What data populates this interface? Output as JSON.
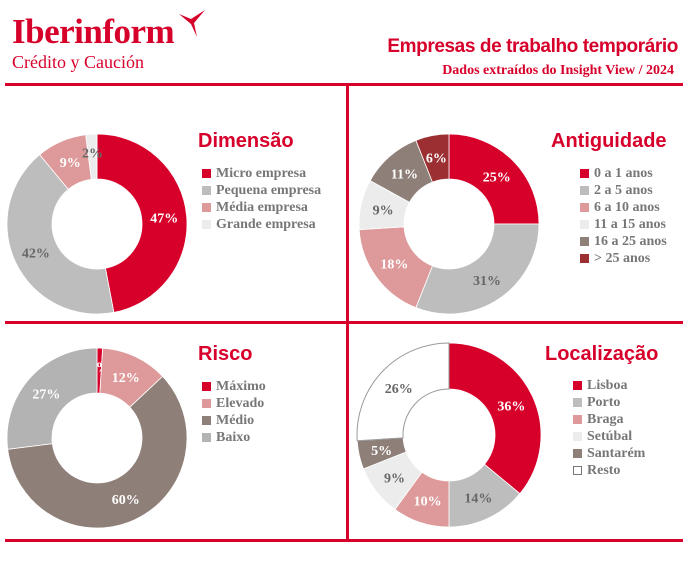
{
  "header": {
    "brand": "Iberinform",
    "brand_sub": "Crédito y Caución",
    "title": "Empresas de trabalho temporário",
    "subtitle": "Dados extraídos do Insight View / 2024"
  },
  "chart_data": [
    {
      "type": "pie",
      "title": "Dimensão",
      "categories": [
        "Micro empresa",
        "Pequena empresa",
        "Média empresa",
        "Grande empresa"
      ],
      "values": [
        47,
        42,
        9,
        2
      ],
      "colors": [
        "#d7002b",
        "#bdbdbd",
        "#de9a9a",
        "#ececec"
      ],
      "label_colors": [
        "#ffffff",
        "#666666",
        "#ffffff",
        "#666666"
      ]
    },
    {
      "type": "pie",
      "title": "Antiguidade",
      "categories": [
        "0 a 1 anos",
        "2 a 5 anos",
        "6 a 10 anos",
        "11 a 15 anos",
        "16 a 25 anos",
        "> 25 anos"
      ],
      "values": [
        25,
        31,
        18,
        9,
        11,
        6
      ],
      "colors": [
        "#d7002b",
        "#bdbdbd",
        "#de9a9a",
        "#ececec",
        "#8e7f78",
        "#9b2f31"
      ],
      "label_colors": [
        "#ffffff",
        "#666666",
        "#ffffff",
        "#666666",
        "#ffffff",
        "#ffffff"
      ]
    },
    {
      "type": "pie",
      "title": "Risco",
      "categories": [
        "Máximo",
        "Elevado",
        "Médio",
        "Baixo"
      ],
      "values": [
        1,
        12,
        60,
        27
      ],
      "colors": [
        "#d7002b",
        "#de9a9a",
        "#8e7f78",
        "#b3b3b3"
      ],
      "label_colors": [
        "#ffffff",
        "#ffffff",
        "#ffffff",
        "#ffffff"
      ]
    },
    {
      "type": "pie",
      "title": "Localização",
      "categories": [
        "Lisboa",
        "Porto",
        "Braga",
        "Setúbal",
        "Santarém",
        "Resto"
      ],
      "values": [
        36,
        14,
        10,
        9,
        5,
        26
      ],
      "colors": [
        "#d7002b",
        "#bdbdbd",
        "#de9a9a",
        "#ececec",
        "#8e7f78",
        "#ffffff"
      ],
      "label_colors": [
        "#ffffff",
        "#666666",
        "#ffffff",
        "#666666",
        "#ffffff",
        "#666666"
      ]
    }
  ]
}
